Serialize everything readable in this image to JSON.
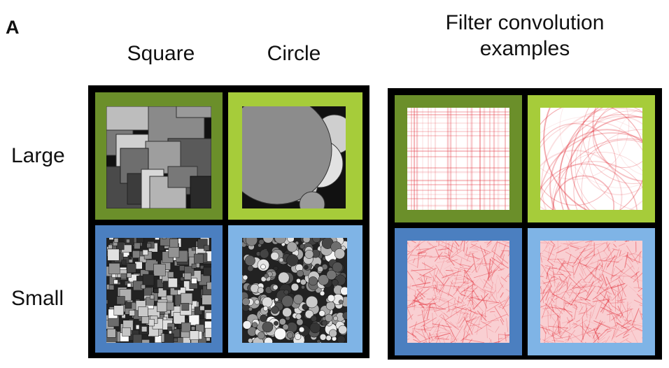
{
  "panel_letter": "A",
  "columns": {
    "square": "Square",
    "circle": "Circle"
  },
  "rows": {
    "large": "Large",
    "small": "Small"
  },
  "filter_title_line1": "Filter convolution",
  "filter_title_line2": "examples",
  "colors": {
    "large_square": "#6b8f2a",
    "large_circle": "#a6cc3a",
    "small_square": "#4b7fc0",
    "small_circle": "#7fb4e6",
    "filter_red": "#e0212c",
    "frame": "#000000"
  },
  "tiles": [
    {
      "id": "large-square",
      "icon": "large-squares-texture"
    },
    {
      "id": "large-circle",
      "icon": "large-circles-texture"
    },
    {
      "id": "small-square",
      "icon": "small-squares-texture"
    },
    {
      "id": "small-circle",
      "icon": "small-circles-texture"
    },
    {
      "id": "filter-large-square",
      "icon": "red-grid-lines-texture"
    },
    {
      "id": "filter-large-circle",
      "icon": "red-arcs-texture"
    },
    {
      "id": "filter-small-square",
      "icon": "red-noise-texture"
    },
    {
      "id": "filter-small-circle",
      "icon": "red-noise-texture"
    }
  ]
}
